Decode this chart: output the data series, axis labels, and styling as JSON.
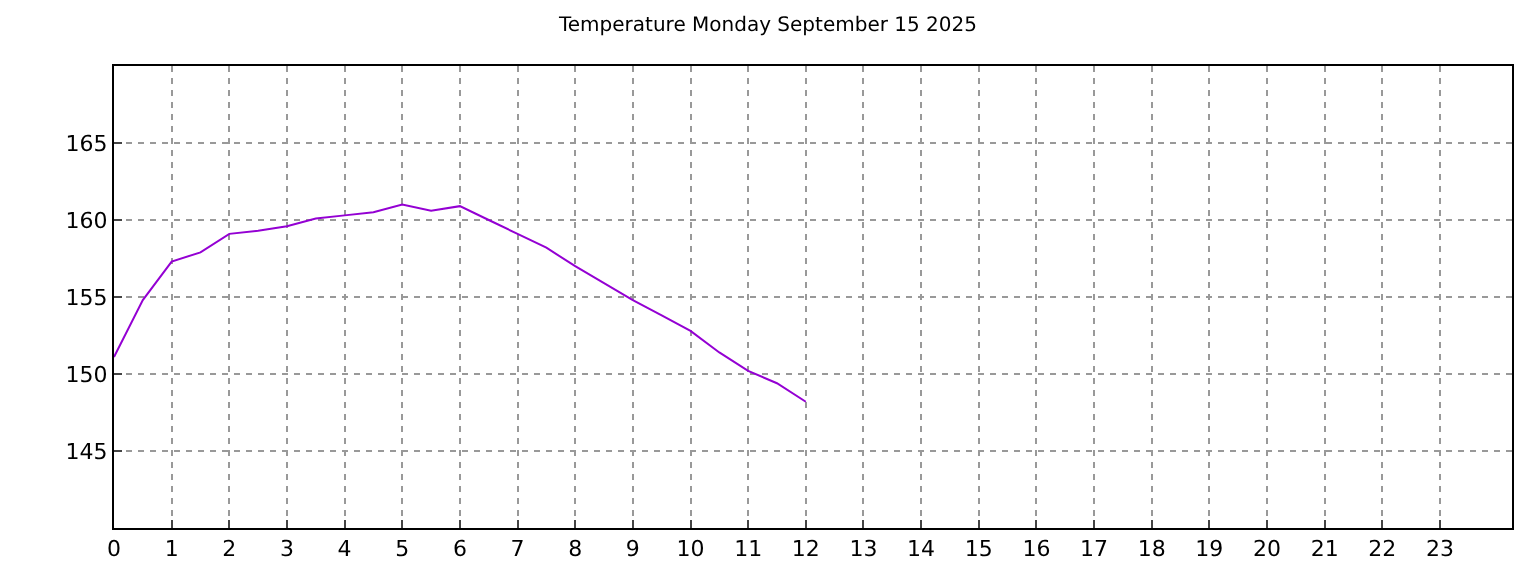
{
  "chart_data": {
    "type": "line",
    "title": "Temperature Monday September 15 2025",
    "x": [
      0,
      0.5,
      1,
      1.5,
      2,
      2.5,
      3,
      3.5,
      4,
      4.5,
      5,
      5.5,
      6,
      6.5,
      7,
      7.5,
      8,
      8.5,
      9,
      9.5,
      10,
      10.5,
      11,
      11.5,
      12
    ],
    "series": [
      {
        "color": "#9400d3",
        "values": [
          151.1,
          154.8,
          157.3,
          157.9,
          159.1,
          159.3,
          159.6,
          160.1,
          160.3,
          160.5,
          161.0,
          160.6,
          160.9,
          160.0,
          159.1,
          158.2,
          157.0,
          155.9,
          154.8,
          153.8,
          152.8,
          151.4,
          150.2,
          149.4,
          148.2
        ]
      }
    ],
    "xlim": [
      0,
      24.25
    ],
    "xticks": [
      0,
      1,
      2,
      3,
      4,
      5,
      6,
      7,
      8,
      9,
      10,
      11,
      12,
      13,
      14,
      15,
      16,
      17,
      18,
      19,
      20,
      21,
      22,
      23
    ],
    "ylim": [
      140,
      170
    ],
    "yticks": [
      145,
      150,
      155,
      160,
      165
    ],
    "grid": true,
    "legend": false,
    "marker": "none",
    "line_style": "solid"
  }
}
